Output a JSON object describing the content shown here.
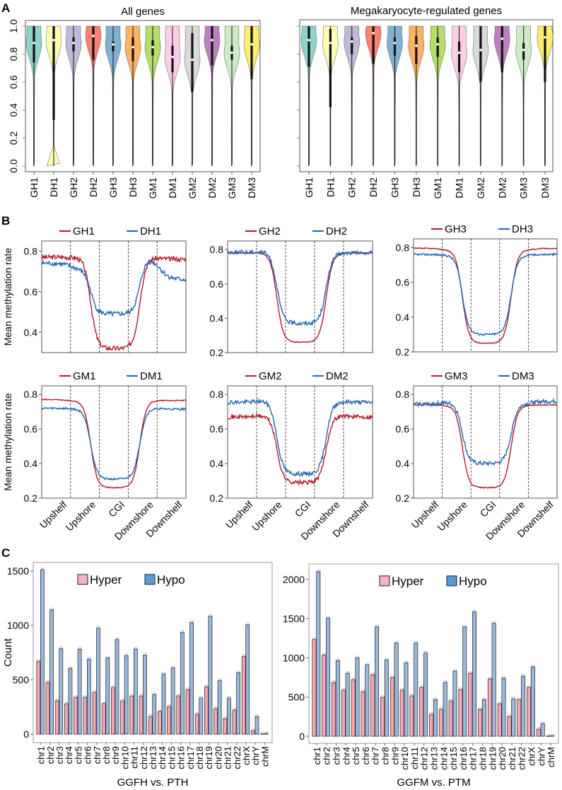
{
  "panel_labels": {
    "a": "A",
    "b": "B",
    "c": "C"
  },
  "chart_data": [
    {
      "id": "A-left",
      "type": "violin",
      "title": "All genes",
      "ylim": [
        0,
        1
      ],
      "yticks": [
        "0.0",
        "0.2",
        "0.4",
        "0.6",
        "0.8",
        "1.0"
      ],
      "categories": [
        "GH1",
        "DH1",
        "GH2",
        "DH2",
        "GH3",
        "DH3",
        "GM1",
        "DM1",
        "GM2",
        "DM2",
        "GM3",
        "DM3"
      ],
      "colors": [
        "#8dd3c7",
        "#ffffb3",
        "#bebada",
        "#fb8072",
        "#80b1d3",
        "#fdb462",
        "#b3de69",
        "#fccde5",
        "#d9d9d9",
        "#bc80bd",
        "#ccebc5",
        "#ffed6f"
      ],
      "medians": [
        0.88,
        0.9,
        0.88,
        0.93,
        0.87,
        0.85,
        0.85,
        0.78,
        0.76,
        0.9,
        0.81,
        0.87
      ],
      "q1": [
        0.74,
        0.33,
        0.82,
        0.76,
        0.82,
        0.75,
        0.79,
        0.67,
        0.53,
        0.72,
        0.76,
        0.62
      ],
      "q3": [
        1.0,
        1.0,
        0.92,
        1.0,
        0.89,
        0.92,
        0.9,
        0.86,
        0.95,
        1.0,
        0.86,
        1.0
      ]
    },
    {
      "id": "A-right",
      "type": "violin",
      "title": "Megakaryocyte-regulated genes",
      "ylim": [
        0,
        1
      ],
      "categories": [
        "GH1",
        "DH1",
        "GH2",
        "DH2",
        "GH3",
        "DH3",
        "GM1",
        "DM1",
        "GM2",
        "DM2",
        "GM3",
        "DM3"
      ],
      "colors": [
        "#8dd3c7",
        "#ffffb3",
        "#bebada",
        "#fb8072",
        "#80b1d3",
        "#fdb462",
        "#b3de69",
        "#fccde5",
        "#d9d9d9",
        "#bc80bd",
        "#ccebc5",
        "#ffed6f"
      ],
      "medians": [
        0.9,
        0.88,
        0.89,
        0.95,
        0.88,
        0.86,
        0.87,
        0.81,
        0.83,
        0.91,
        0.83,
        0.92
      ],
      "q1": [
        0.71,
        0.42,
        0.8,
        0.73,
        0.79,
        0.73,
        0.78,
        0.67,
        0.6,
        0.67,
        0.76,
        0.6
      ],
      "q3": [
        1.0,
        0.98,
        0.92,
        1.0,
        0.92,
        0.93,
        0.92,
        0.89,
        1.0,
        1.0,
        0.88,
        1.0
      ]
    },
    {
      "id": "B",
      "type": "line",
      "ylabel": "Mean methylation rate",
      "x_regions": [
        "Upshelf",
        "Upshore",
        "CGI",
        "Downshore",
        "Downshelf"
      ],
      "plots": [
        {
          "series": [
            {
              "name": "GH1",
              "color": "#b2182b",
              "levels": {
                "shelf_l": 0.77,
                "shore_l": 0.77,
                "cgi": 0.32,
                "shore_r": 0.77,
                "shelf_r": 0.76
              }
            },
            {
              "name": "DH1",
              "color": "#2166ac",
              "levels": {
                "shelf_l": 0.74,
                "shore_l": 0.71,
                "cgi": 0.49,
                "shore_r": 0.77,
                "shelf_r": 0.66
              }
            }
          ],
          "ylim": [
            0.3,
            0.85
          ],
          "yticks": [
            "0.4",
            "0.6",
            "0.8"
          ]
        },
        {
          "series": [
            {
              "name": "GH2",
              "color": "#b2182b",
              "levels": {
                "shelf_l": 0.78,
                "shore_l": 0.78,
                "cgi": 0.26,
                "shore_r": 0.78,
                "shelf_r": 0.78
              }
            },
            {
              "name": "DH2",
              "color": "#2166ac",
              "levels": {
                "shelf_l": 0.785,
                "shore_l": 0.79,
                "cgi": 0.37,
                "shore_r": 0.78,
                "shelf_r": 0.78
              }
            }
          ],
          "ylim": [
            0.2,
            0.85
          ],
          "yticks": [
            "0.2",
            "0.4",
            "0.6",
            "0.8"
          ]
        },
        {
          "series": [
            {
              "name": "GH3",
              "color": "#b2182b",
              "levels": {
                "shelf_l": 0.795,
                "shore_l": 0.785,
                "cgi": 0.25,
                "shore_r": 0.785,
                "shelf_r": 0.795
              }
            },
            {
              "name": "DH3",
              "color": "#2166ac",
              "levels": {
                "shelf_l": 0.76,
                "shore_l": 0.755,
                "cgi": 0.3,
                "shore_r": 0.755,
                "shelf_r": 0.76
              }
            }
          ],
          "ylim": [
            0.2,
            0.85
          ],
          "yticks": [
            "0.2",
            "0.4",
            "0.6",
            "0.8"
          ]
        },
        {
          "series": [
            {
              "name": "GM1",
              "color": "#b2182b",
              "levels": {
                "shelf_l": 0.77,
                "shore_l": 0.76,
                "cgi": 0.26,
                "shore_r": 0.765,
                "shelf_r": 0.765
              }
            },
            {
              "name": "DM1",
              "color": "#2166ac",
              "levels": {
                "shelf_l": 0.72,
                "shore_l": 0.715,
                "cgi": 0.31,
                "shore_r": 0.72,
                "shelf_r": 0.715
              }
            }
          ],
          "ylim": [
            0.2,
            0.85
          ],
          "yticks": [
            "0.2",
            "0.4",
            "0.6",
            "0.8"
          ]
        },
        {
          "series": [
            {
              "name": "GM2",
              "color": "#b2182b",
              "levels": {
                "shelf_l": 0.67,
                "shore_l": 0.68,
                "cgi": 0.29,
                "shore_r": 0.68,
                "shelf_r": 0.67
              }
            },
            {
              "name": "DM2",
              "color": "#2166ac",
              "levels": {
                "shelf_l": 0.755,
                "shore_l": 0.765,
                "cgi": 0.34,
                "shore_r": 0.76,
                "shelf_r": 0.755
              }
            }
          ],
          "ylim": [
            0.2,
            0.85
          ],
          "yticks": [
            "0.2",
            "0.4",
            "0.6",
            "0.8"
          ]
        },
        {
          "series": [
            {
              "name": "GM3",
              "color": "#b2182b",
              "levels": {
                "shelf_l": 0.74,
                "shore_l": 0.735,
                "cgi": 0.26,
                "shore_r": 0.735,
                "shelf_r": 0.74
              }
            },
            {
              "name": "DM3",
              "color": "#2166ac",
              "levels": {
                "shelf_l": 0.745,
                "shore_l": 0.755,
                "cgi": 0.4,
                "shore_r": 0.745,
                "shelf_r": 0.76
              }
            }
          ],
          "ylim": [
            0.2,
            0.85
          ],
          "yticks": [
            "0.2",
            "0.4",
            "0.6",
            "0.8"
          ]
        }
      ]
    },
    {
      "id": "C-left",
      "type": "bar",
      "xlabel": "GGFH vs. PTH",
      "ylabel": "Count",
      "ylim": [
        0,
        1650
      ],
      "yticks": [
        0,
        500,
        1000,
        1500
      ],
      "categories": [
        "chr1",
        "chr2",
        "chr3",
        "chr4",
        "chr5",
        "chr6",
        "chr7",
        "chr8",
        "chr9",
        "chr10",
        "chr11",
        "chr12",
        "chr13",
        "chr14",
        "chr15",
        "chr16",
        "chr17",
        "chr18",
        "chr19",
        "chr20",
        "chr21",
        "chr22",
        "chrX",
        "chrY",
        "chrM"
      ],
      "series": [
        {
          "name": "Hyper",
          "color": "#f4a6b4",
          "values": [
            669,
            474,
            305,
            279,
            338,
            338,
            383,
            280,
            428,
            305,
            350,
            350,
            162,
            208,
            253,
            351,
            409,
            182,
            435,
            234,
            143,
            221,
            714,
            32,
            2
          ]
        },
        {
          "name": "Hypo",
          "color": "#9ab8dc",
          "values": [
            1510,
            1143,
            786,
            604,
            780,
            688,
            974,
            701,
            870,
            721,
            780,
            725,
            364,
            552,
            610,
            935,
            1026,
            331,
            1084,
            493,
            331,
            565,
            1006,
            162,
            5
          ]
        }
      ],
      "legend": [
        "Hyper",
        "Hypo"
      ]
    },
    {
      "id": "C-right",
      "type": "bar",
      "xlabel": "GGFM vs. PTM",
      "ylabel": "",
      "ylim": [
        0,
        2200
      ],
      "yticks": [
        0,
        500,
        1000,
        1500,
        2000
      ],
      "categories": [
        "chr1",
        "chr2",
        "chr3",
        "chr4",
        "chr5",
        "chr6",
        "chr7",
        "chr8",
        "chr9",
        "chr10",
        "chr11",
        "chr12",
        "chr13",
        "chr14",
        "chr15",
        "chr16",
        "chr17",
        "chr18",
        "chr19",
        "chr20",
        "chr21",
        "chr22",
        "chrX",
        "chrY",
        "chrM"
      ],
      "series": [
        {
          "name": "Hyper",
          "color": "#f4a6b4",
          "values": [
            1234,
            1036,
            685,
            586,
            721,
            568,
            784,
            495,
            748,
            586,
            514,
            622,
            279,
            342,
            450,
            595,
            802,
            342,
            730,
            414,
            252,
            468,
            622,
            90,
            3
          ]
        },
        {
          "name": "Hypo",
          "color": "#9ab8dc",
          "values": [
            2099,
            1505,
            964,
            802,
            1000,
            910,
            1396,
            973,
            1189,
            937,
            1189,
            1063,
            468,
            685,
            829,
            1396,
            1586,
            468,
            1441,
            739,
            477,
            766,
            883,
            162,
            5
          ]
        }
      ],
      "legend": [
        "Hyper",
        "Hypo"
      ]
    }
  ]
}
